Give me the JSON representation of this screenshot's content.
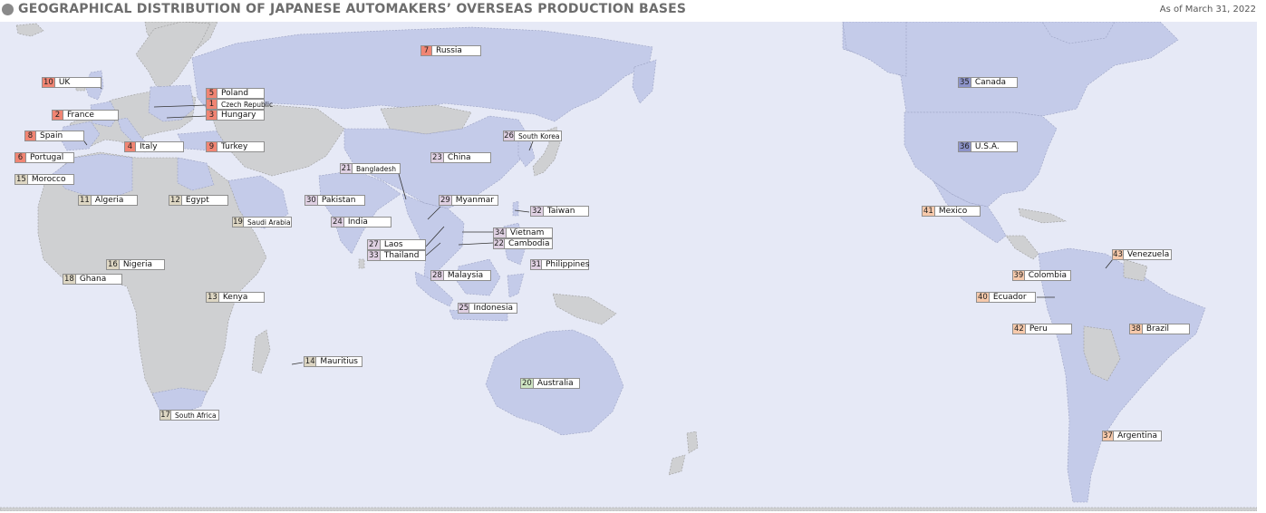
{
  "header": {
    "title": "GEOGRAPHICAL DISTRIBUTION OF JAPANESE AUTOMAKERS’ OVERSEAS PRODUCTION BASES",
    "as_of": "As of March 31, 2022"
  },
  "colors": {
    "ocean": "#e6e9f6",
    "land_base": "#c4cbe9",
    "land_other": "#cfd0d2",
    "europe": "#f08573",
    "africa": "#ddd6c3",
    "asia": "#dfd0e2",
    "oceania": "#cfe5c3",
    "north_america": "#8c93c9",
    "latin_america": "#f6c9ab"
  },
  "countries": [
    {
      "num": "1",
      "name": "Czech Republic",
      "region": "europe"
    },
    {
      "num": "2",
      "name": "France",
      "region": "europe"
    },
    {
      "num": "3",
      "name": "Hungary",
      "region": "europe"
    },
    {
      "num": "5",
      "name": "Poland",
      "region": "europe"
    },
    {
      "num": "6",
      "name": "Portugal",
      "region": "europe"
    },
    {
      "num": "7",
      "name": "Russia",
      "region": "europe"
    },
    {
      "num": "8",
      "name": "Spain",
      "region": "europe"
    },
    {
      "num": "9",
      "name": "Turkey",
      "region": "europe"
    },
    {
      "num": "10",
      "name": "UK",
      "region": "europe"
    },
    {
      "num": "4",
      "name": "Italy",
      "region": "europe"
    },
    {
      "num": "11",
      "name": "Algeria",
      "region": "africa"
    },
    {
      "num": "12",
      "name": "Egypt",
      "region": "africa"
    },
    {
      "num": "13",
      "name": "Kenya",
      "region": "africa"
    },
    {
      "num": "14",
      "name": "Mauritius",
      "region": "africa"
    },
    {
      "num": "15",
      "name": "Morocco",
      "region": "africa"
    },
    {
      "num": "16",
      "name": "Nigeria",
      "region": "africa"
    },
    {
      "num": "17",
      "name": "South Africa",
      "region": "africa"
    },
    {
      "num": "18",
      "name": "Ghana",
      "region": "africa"
    },
    {
      "num": "19",
      "name": "Saudi Arabia",
      "region": "africa"
    },
    {
      "num": "20",
      "name": "Australia",
      "region": "oceania"
    },
    {
      "num": "21",
      "name": "Bangladesh",
      "region": "asia"
    },
    {
      "num": "22",
      "name": "Cambodia",
      "region": "asia"
    },
    {
      "num": "23",
      "name": "China",
      "region": "asia"
    },
    {
      "num": "24",
      "name": "India",
      "region": "asia"
    },
    {
      "num": "25",
      "name": "Indonesia",
      "region": "asia"
    },
    {
      "num": "26",
      "name": "South Korea",
      "region": "asia"
    },
    {
      "num": "27",
      "name": "Laos",
      "region": "asia"
    },
    {
      "num": "28",
      "name": "Malaysia",
      "region": "asia"
    },
    {
      "num": "29",
      "name": "Myanmar",
      "region": "asia"
    },
    {
      "num": "30",
      "name": "Pakistan",
      "region": "asia"
    },
    {
      "num": "31",
      "name": "Philippines",
      "region": "asia"
    },
    {
      "num": "32",
      "name": "Taiwan",
      "region": "asia"
    },
    {
      "num": "33",
      "name": "Thailand",
      "region": "asia"
    },
    {
      "num": "34",
      "name": "Vietnam",
      "region": "asia"
    },
    {
      "num": "35",
      "name": "Canada",
      "region": "north_america"
    },
    {
      "num": "36",
      "name": "U.S.A.",
      "region": "north_america"
    },
    {
      "num": "37",
      "name": "Argentina",
      "region": "latin_america"
    },
    {
      "num": "38",
      "name": "Brazil",
      "region": "latin_america"
    },
    {
      "num": "39",
      "name": "Colombia",
      "region": "latin_america"
    },
    {
      "num": "40",
      "name": "Ecuador",
      "region": "latin_america"
    },
    {
      "num": "41",
      "name": "Mexico",
      "region": "latin_america"
    },
    {
      "num": "42",
      "name": "Peru",
      "region": "latin_america"
    },
    {
      "num": "43",
      "name": "Venezuela",
      "region": "latin_america"
    }
  ]
}
